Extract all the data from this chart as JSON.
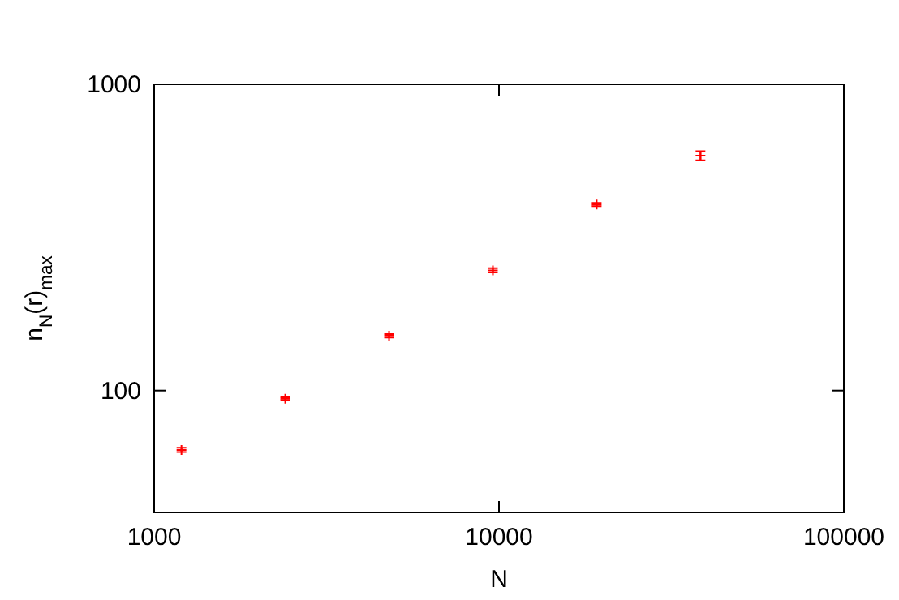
{
  "chart_data": {
    "type": "scatter",
    "xlabel": "N",
    "ylabel": "n$_{N}$(r)$_{max}$",
    "log": "xy",
    "xlim": [
      1000,
      100000
    ],
    "xticks": [
      1000,
      10000,
      100000
    ],
    "ylim": [
      40,
      1000
    ],
    "yticks": [
      100,
      1000
    ],
    "grid": false,
    "marker": "cross",
    "series": [
      {
        "color": "#ff0000",
        "x": [
          1200,
          2400,
          4800,
          9600,
          19200,
          38400
        ],
        "values": [
          64,
          94,
          151,
          247,
          405,
          585
        ],
        "errors": [
          1,
          1,
          2,
          4,
          5,
          20
        ]
      }
    ]
  }
}
